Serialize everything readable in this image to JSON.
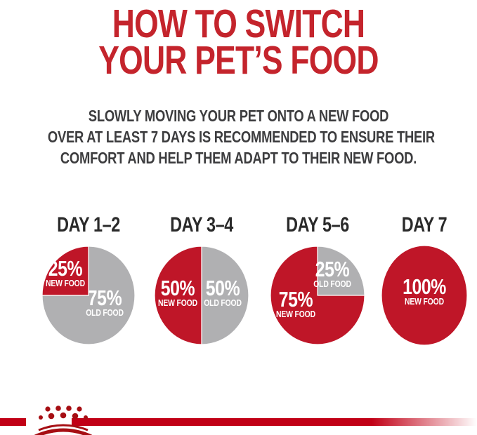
{
  "title": {
    "line1": "HOW TO SWITCH",
    "line2": "YOUR PET’S FOOD"
  },
  "subtitle": {
    "lines": [
      "SLOWLY MOVING YOUR PET ONTO A NEW FOOD",
      "OVER AT LEAST 7 DAYS IS RECOMMENDED TO ENSURE THEIR",
      "COMFORT AND HELP THEM ADAPT TO THEIR NEW FOOD."
    ]
  },
  "colors": {
    "title_red": "#c4242c",
    "red": "#bf1628",
    "gray": "#b0b0b2",
    "bar_red": "#c10016",
    "crown_red": "#a60e13",
    "day_heading": "#2a2a2a",
    "subtitle_text": "#3d3d3f",
    "label_text": "#ffffff"
  },
  "chart_data": [
    {
      "type": "pie",
      "title": "DAY 1–2",
      "legend_position": "inside",
      "slices": [
        {
          "label": "OLD FOOD",
          "pct_label": "75%",
          "value": 75,
          "color": "gray"
        },
        {
          "label": "NEW FOOD",
          "pct_label": "25%",
          "value": 25,
          "color": "red"
        }
      ]
    },
    {
      "type": "pie",
      "title": "DAY 3–4",
      "legend_position": "inside",
      "slices": [
        {
          "label": "OLD FOOD",
          "pct_label": "50%",
          "value": 50,
          "color": "gray"
        },
        {
          "label": "NEW FOOD",
          "pct_label": "50%",
          "value": 50,
          "color": "red"
        }
      ]
    },
    {
      "type": "pie",
      "title": "DAY 5–6",
      "legend_position": "inside",
      "slices": [
        {
          "label": "OLD FOOD",
          "pct_label": "25%",
          "value": 25,
          "color": "gray"
        },
        {
          "label": "NEW FOOD",
          "pct_label": "75%",
          "value": 75,
          "color": "red"
        }
      ]
    },
    {
      "type": "pie",
      "title": "DAY 7",
      "legend_position": "inside",
      "slices": [
        {
          "label": "NEW FOOD",
          "pct_label": "100%",
          "value": 100,
          "color": "red"
        }
      ]
    }
  ],
  "footer": {
    "logo": "royal-canin-crown"
  }
}
